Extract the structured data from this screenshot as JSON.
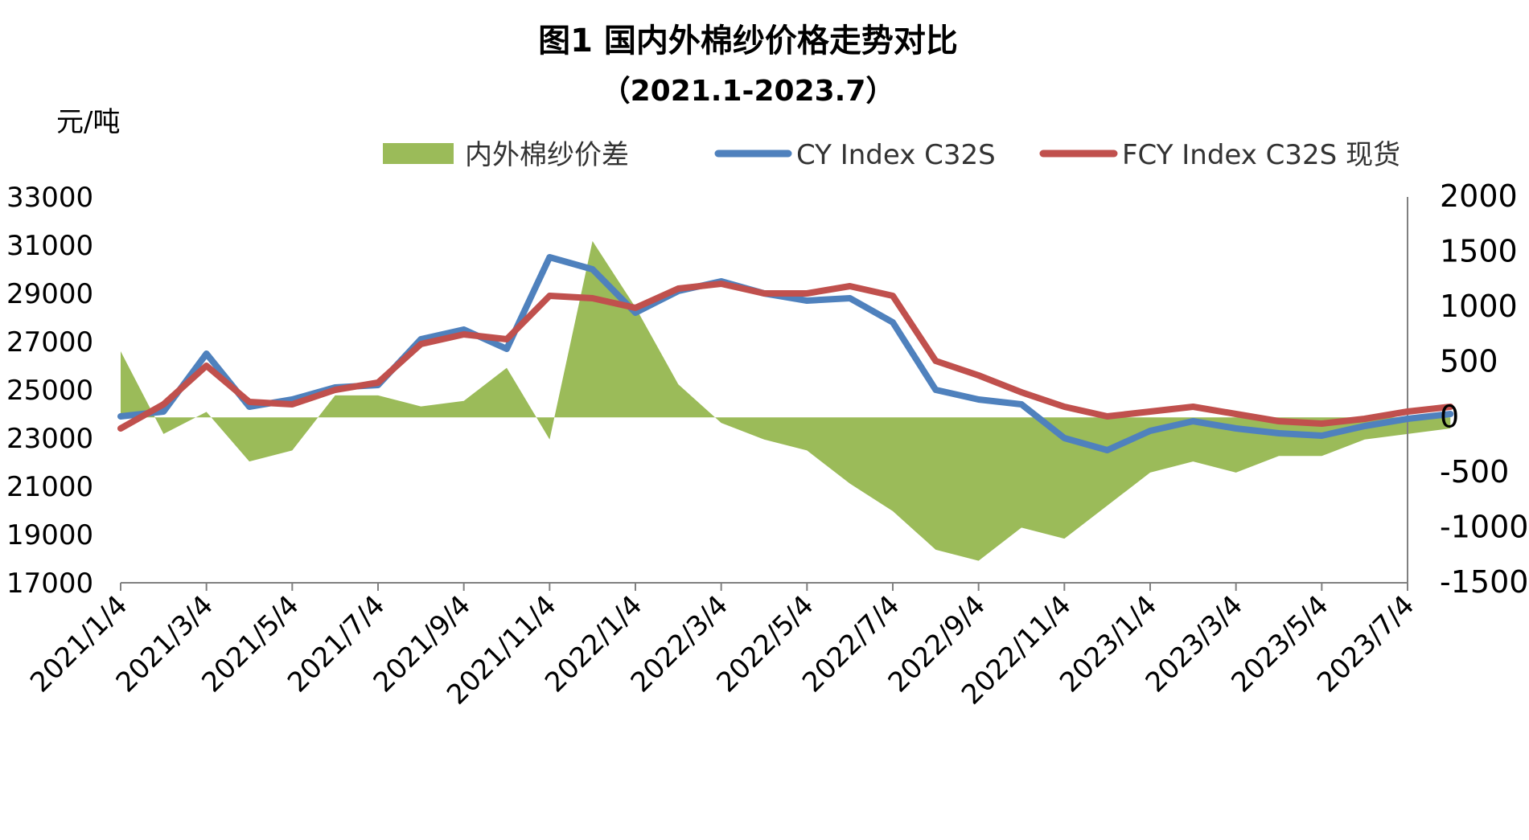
{
  "chart_data": {
    "type": "line",
    "title": "图1   国内外棉纱价格走势对比",
    "subtitle": "（2021.1-2023.7）",
    "ylabel": "元/吨",
    "ylim": [
      17000,
      33000
    ],
    "y2lim": [
      -1500,
      2000
    ],
    "yticks": [
      "33000",
      "31000",
      "29000",
      "27000",
      "25000",
      "23000",
      "21000",
      "19000",
      "17000"
    ],
    "y2ticks": [
      "2000",
      "1500",
      "1000",
      "500",
      "0",
      "-500",
      "-1000",
      "-1500"
    ],
    "xticks": [
      "2021/1/4",
      "2021/3/4",
      "2021/5/4",
      "2021/7/4",
      "2021/9/4",
      "2021/11/4",
      "2022/1/4",
      "2022/3/4",
      "2022/5/4",
      "2022/7/4",
      "2022/9/4",
      "2022/11/4",
      "2023/1/4",
      "2023/3/4",
      "2023/5/4",
      "2023/7/4"
    ],
    "x": [
      0,
      0.5,
      1,
      1.5,
      2,
      2.5,
      3,
      3.5,
      4,
      4.5,
      5,
      5.5,
      6,
      6.5,
      7,
      7.5,
      8,
      8.5,
      9,
      9.5,
      10,
      10.5,
      11,
      11.5,
      12,
      12.5,
      13,
      13.5,
      14,
      14.5,
      15,
      15.5
    ],
    "legend_position": "top",
    "series": [
      {
        "name": "内外棉纱价差",
        "axis": "right",
        "kind": "area",
        "color": "#9bbb59",
        "values": [
          600,
          -150,
          50,
          -400,
          -300,
          200,
          200,
          100,
          150,
          450,
          -200,
          1600,
          1000,
          300,
          -50,
          -200,
          -300,
          -600,
          -850,
          -1200,
          -1300,
          -1000,
          -1100,
          -800,
          -500,
          -400,
          -500,
          -350,
          -350,
          -200,
          -150,
          -100
        ]
      },
      {
        "name": "CY Index C32S",
        "axis": "left",
        "kind": "line",
        "color": "#4f81bd",
        "values": [
          23900,
          24100,
          26500,
          24300,
          24600,
          25100,
          25200,
          27100,
          27500,
          26700,
          30500,
          30000,
          28200,
          29100,
          29500,
          29000,
          28700,
          28800,
          27800,
          25000,
          24600,
          24400,
          23000,
          22500,
          23300,
          23700,
          23400,
          23200,
          23100,
          23500,
          23800,
          24000
        ]
      },
      {
        "name": "FCY Index C32S 现货",
        "axis": "left",
        "kind": "line",
        "color": "#c0504d",
        "values": [
          23400,
          24400,
          26000,
          24500,
          24400,
          25000,
          25300,
          26900,
          27300,
          27100,
          28900,
          28800,
          28400,
          29200,
          29400,
          29000,
          29000,
          29300,
          28900,
          26200,
          25600,
          24900,
          24300,
          23900,
          24100,
          24300,
          24000,
          23700,
          23600,
          23800,
          24100,
          24300
        ]
      }
    ]
  }
}
